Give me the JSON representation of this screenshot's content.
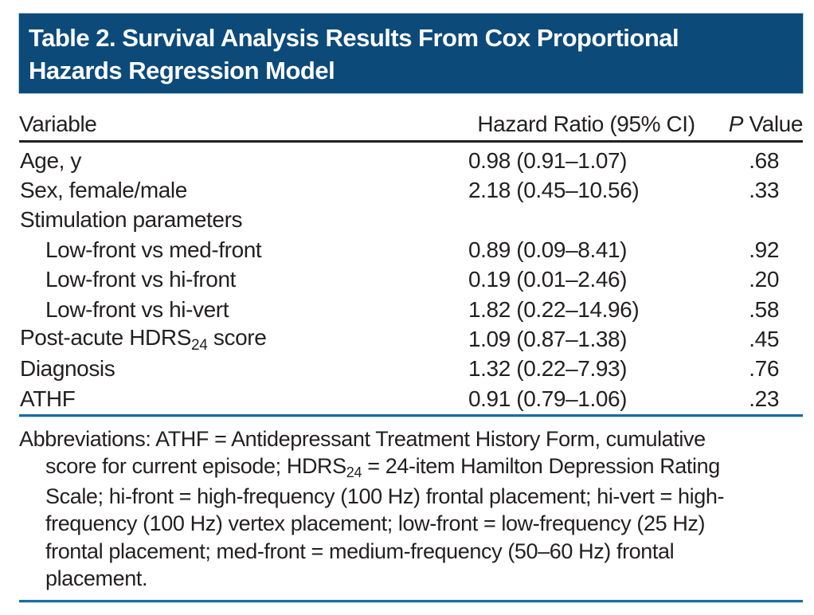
{
  "colors": {
    "header_bg": "#0c4a7a",
    "rule_blue": "#1a6da1",
    "text": "#231f20",
    "header_text": "#ffffff"
  },
  "header": {
    "title_line1": "Table 2. Survival Analysis Results From Cox Proportional",
    "title_line2": "Hazards Regression Model"
  },
  "table": {
    "columns": {
      "variable": "Variable",
      "hazard_ratio": "Hazard Ratio (95% CI)",
      "p_value_italic": "P",
      "p_value_rest": " Value"
    },
    "rows": [
      {
        "variable": "Age, y",
        "hr": "0.98 (0.91–1.07)",
        "p": ".68"
      },
      {
        "variable": "Sex, female/male",
        "hr": "2.18 (0.45–10.56)",
        "p": ".33"
      },
      {
        "variable": "Stimulation parameters",
        "hr": "",
        "p": ""
      },
      {
        "variable": "Low-front vs med-front",
        "hr": "0.89 (0.09–8.41)",
        "p": ".92"
      },
      {
        "variable": "Low-front vs hi-front",
        "hr": "0.19 (0.01–2.46)",
        "p": ".20"
      },
      {
        "variable": "Low-front vs hi-vert",
        "hr": "1.82 (0.22–14.96)",
        "p": ".58"
      },
      {
        "variable_pre": "Post-acute HDRS",
        "variable_sub": "24",
        "variable_post": " score",
        "hr": "1.09 (0.87–1.38)",
        "p": ".45"
      },
      {
        "variable": "Diagnosis",
        "hr": "1.32 (0.22–7.93)",
        "p": ".76"
      },
      {
        "variable": "ATHF",
        "hr": "0.91 (0.79–1.06)",
        "p": ".23"
      }
    ]
  },
  "footnote": {
    "lines": [
      {
        "text": "Abbreviations: ATHF = Antidepressant Treatment History Form, cumulative"
      },
      {
        "pre": "score for current episode; HDRS",
        "sub": "24",
        "post": " = 24-item Hamilton Depression Rating"
      },
      {
        "text": "Scale; hi-front = high-frequency (100 Hz) frontal placement; hi-vert = high-"
      },
      {
        "text": "frequency (100 Hz) vertex placement; low-front = low-frequency (25 Hz)"
      },
      {
        "text": "frontal placement; med-front = medium-frequency (50–60 Hz) frontal"
      },
      {
        "text": "placement."
      }
    ]
  }
}
